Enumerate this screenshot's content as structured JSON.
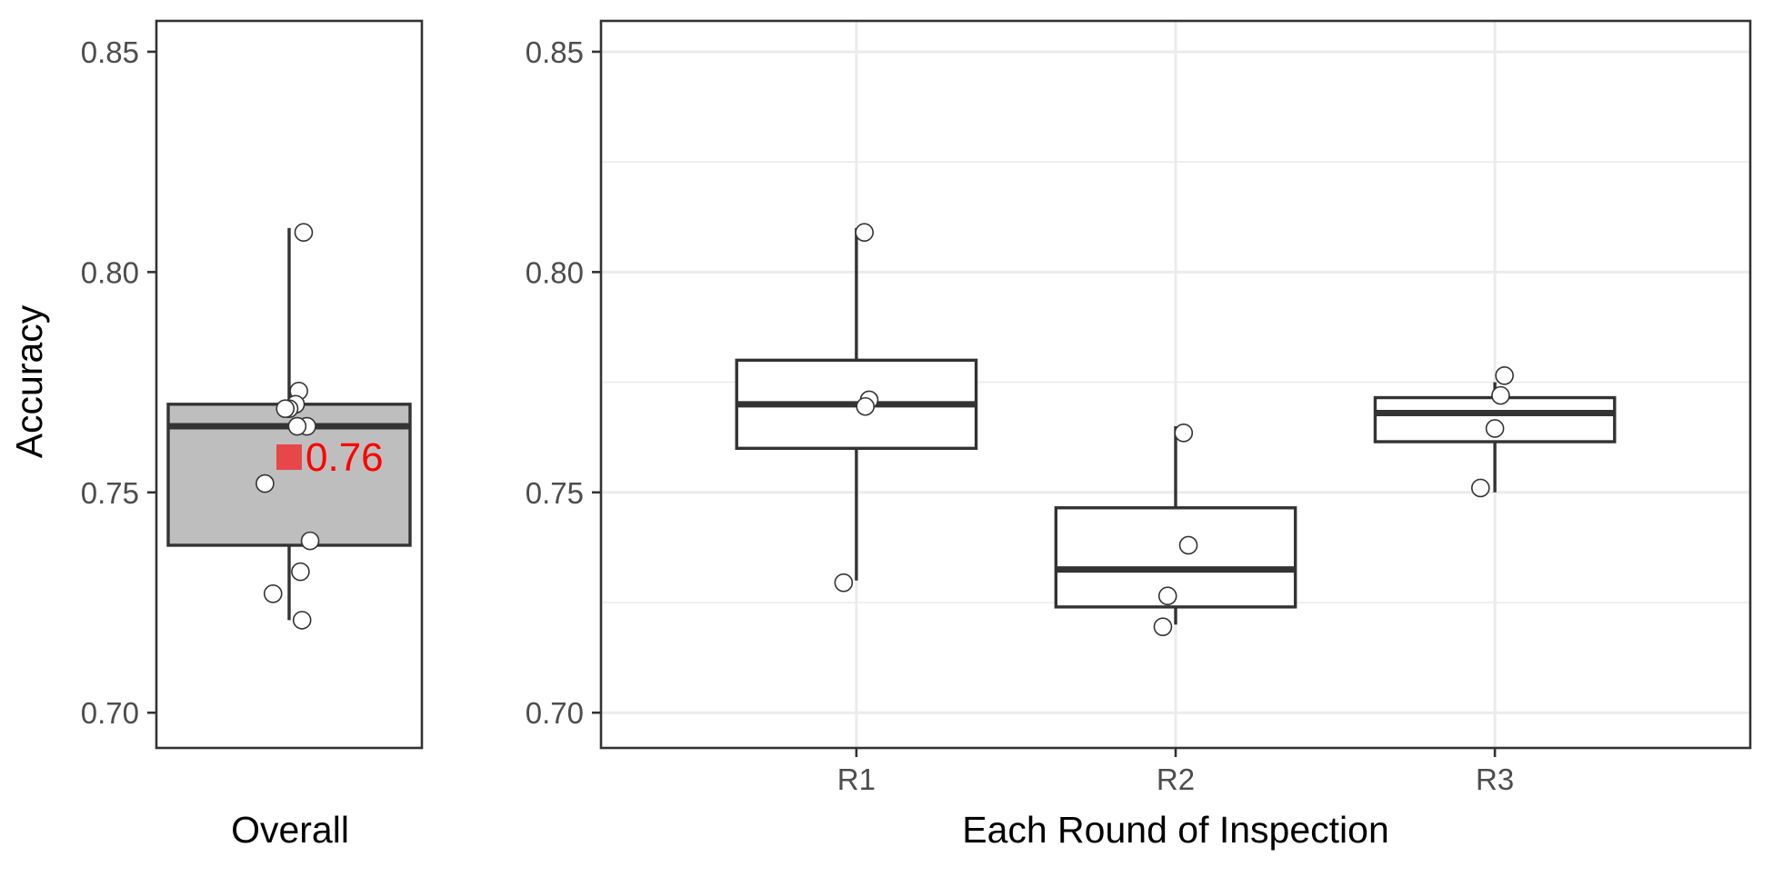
{
  "colors": {
    "overall_box_fill": "#bebebe",
    "round_box_fill": "#ffffff",
    "line": "#333333",
    "mean_marker": "#e8474a",
    "mean_text": "#ff0000"
  },
  "y_axis": {
    "label": "Accuracy",
    "range": [
      0.692,
      0.857
    ],
    "ticks": [
      0.7,
      0.75,
      0.8,
      0.85
    ],
    "tick_labels": [
      "0.70",
      "0.75",
      "0.80",
      "0.85"
    ]
  },
  "chart_data": [
    {
      "type": "box",
      "panel": "overall",
      "xlabel": "Overall",
      "ylabel": "Accuracy",
      "ylim": [
        0.692,
        0.857
      ],
      "grid": false,
      "fill": "#bebebe",
      "box": {
        "whisker_low": 0.721,
        "q1": 0.738,
        "median": 0.765,
        "q3": 0.77,
        "whisker_high": 0.81
      },
      "mean": 0.758,
      "mean_label": "0.76",
      "points": [
        {
          "jitter": 0.045,
          "value": 0.809
        },
        {
          "jitter": 0.03,
          "value": 0.773
        },
        {
          "jitter": 0.02,
          "value": 0.77
        },
        {
          "jitter": 0.0,
          "value": 0.769
        },
        {
          "jitter": -0.012,
          "value": 0.769
        },
        {
          "jitter": 0.055,
          "value": 0.765
        },
        {
          "jitter": 0.025,
          "value": 0.765
        },
        {
          "jitter": -0.075,
          "value": 0.752
        },
        {
          "jitter": 0.065,
          "value": 0.739
        },
        {
          "jitter": 0.035,
          "value": 0.732
        },
        {
          "jitter": -0.05,
          "value": 0.727
        },
        {
          "jitter": 0.04,
          "value": 0.721
        }
      ]
    },
    {
      "type": "box",
      "panel": "rounds",
      "xlabel": "Each Round of Inspection",
      "ylabel": "Accuracy",
      "ylim": [
        0.692,
        0.857
      ],
      "grid": true,
      "categories": [
        "R1",
        "R2",
        "R3"
      ],
      "fill": "#ffffff",
      "boxes": [
        {
          "category": "R1",
          "whisker_low": 0.73,
          "q1": 0.76,
          "median": 0.77,
          "q3": 0.78,
          "whisker_high": 0.81
        },
        {
          "category": "R2",
          "whisker_low": 0.72,
          "q1": 0.724,
          "median": 0.7325,
          "q3": 0.7465,
          "whisker_high": 0.765
        },
        {
          "category": "R3",
          "whisker_low": 0.75,
          "q1": 0.7615,
          "median": 0.768,
          "q3": 0.7715,
          "whisker_high": 0.775
        }
      ],
      "points": [
        {
          "category": "R1",
          "jitter": 0.025,
          "value": 0.809
        },
        {
          "category": "R1",
          "jitter": 0.04,
          "value": 0.771
        },
        {
          "category": "R1",
          "jitter": 0.028,
          "value": 0.7695
        },
        {
          "category": "R1",
          "jitter": -0.04,
          "value": 0.7295
        },
        {
          "category": "R2",
          "jitter": 0.025,
          "value": 0.7635
        },
        {
          "category": "R2",
          "jitter": 0.04,
          "value": 0.738
        },
        {
          "category": "R2",
          "jitter": -0.025,
          "value": 0.7265
        },
        {
          "category": "R2",
          "jitter": -0.04,
          "value": 0.7195
        },
        {
          "category": "R3",
          "jitter": 0.03,
          "value": 0.7765
        },
        {
          "category": "R3",
          "jitter": 0.018,
          "value": 0.772
        },
        {
          "category": "R3",
          "jitter": 0.0,
          "value": 0.7645
        },
        {
          "category": "R3",
          "jitter": -0.045,
          "value": 0.751
        }
      ]
    }
  ]
}
